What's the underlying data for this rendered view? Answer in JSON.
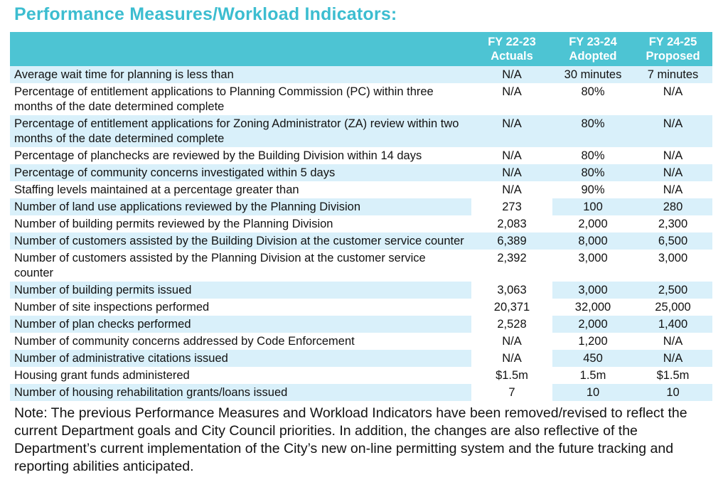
{
  "title": "Performance Measures/Workload Indicators:",
  "colors": {
    "header_background": "#4dc4d3",
    "title_text": "#3cbdd0",
    "shaded_row_background": "#d9f0fa",
    "header_text": "#ffffff",
    "body_text": "#121212"
  },
  "table": {
    "columns": [
      {
        "line1": "FY 22-23",
        "line2": "Actuals"
      },
      {
        "line1": "FY 23-24",
        "line2": "Adopted"
      },
      {
        "line1": "FY 24-25",
        "line2": "Proposed"
      }
    ],
    "rows": [
      {
        "label": "Average wait time for planning is less than",
        "values": [
          "N/A",
          "30 minutes",
          "7 minutes"
        ],
        "shaded": true,
        "actuals_unshaded": false
      },
      {
        "label": "Percentage of entitlement applications to Planning Commission (PC) within three months of the date determined complete",
        "values": [
          "N/A",
          "80%",
          "N/A"
        ],
        "shaded": false,
        "actuals_unshaded": false
      },
      {
        "label": "Percentage of entitlement applications for Zoning Administrator (ZA) review within two months of the date determined complete",
        "values": [
          "N/A",
          "80%",
          "N/A"
        ],
        "shaded": true,
        "actuals_unshaded": false
      },
      {
        "label": "Percentage of planchecks are reviewed by the Building Division within 14 days",
        "values": [
          "N/A",
          "80%",
          "N/A"
        ],
        "shaded": false,
        "actuals_unshaded": false
      },
      {
        "label": "Percentage of community concerns investigated within 5 days",
        "values": [
          "N/A",
          "80%",
          "N/A"
        ],
        "shaded": true,
        "actuals_unshaded": false
      },
      {
        "label": "Staffing levels maintained at a percentage greater than",
        "values": [
          "N/A",
          "90%",
          "N/A"
        ],
        "shaded": false,
        "actuals_unshaded": false
      },
      {
        "label": "Number of land use applications reviewed by the Planning Division",
        "values": [
          "273",
          "100",
          "280"
        ],
        "shaded": true,
        "actuals_unshaded": true
      },
      {
        "label": "Number of building permits reviewed by the Planning Division",
        "values": [
          "2,083",
          "2,000",
          "2,300"
        ],
        "shaded": false,
        "actuals_unshaded": false
      },
      {
        "label": "Number of customers assisted by the Building Division at the customer service counter",
        "values": [
          "6,389",
          "8,000",
          "6,500"
        ],
        "shaded": true,
        "actuals_unshaded": false
      },
      {
        "label": "Number of customers assisted by the Planning Division at the customer service counter",
        "values": [
          "2,392",
          "3,000",
          "3,000"
        ],
        "shaded": false,
        "actuals_unshaded": false
      },
      {
        "label": "Number of building permits issued",
        "values": [
          "3,063",
          "3,000",
          "2,500"
        ],
        "shaded": true,
        "actuals_unshaded": true
      },
      {
        "label": "Number of site inspections performed",
        "values": [
          "20,371",
          "32,000",
          "25,000"
        ],
        "shaded": false,
        "actuals_unshaded": false
      },
      {
        "label": "Number of plan checks performed",
        "values": [
          "2,528",
          "2,000",
          "1,400"
        ],
        "shaded": true,
        "actuals_unshaded": true
      },
      {
        "label": "Number of community concerns addressed by Code Enforcement",
        "values": [
          "N/A",
          "1,200",
          "N/A"
        ],
        "shaded": false,
        "actuals_unshaded": false
      },
      {
        "label": "Number of administrative citations issued",
        "values": [
          "N/A",
          "450",
          "N/A"
        ],
        "shaded": true,
        "actuals_unshaded": true
      },
      {
        "label": "Housing grant funds administered",
        "values": [
          "$1.5m",
          "1.5m",
          "$1.5m"
        ],
        "shaded": false,
        "actuals_unshaded": false
      },
      {
        "label": "Number of housing rehabilitation grants/loans issued",
        "values": [
          "7",
          "10",
          "10"
        ],
        "shaded": true,
        "actuals_unshaded": true
      }
    ]
  },
  "note": "Note: The previous Performance Measures and Workload Indicators have been removed/revised to reflect the current Department goals and City Council priorities. In addition, the changes are also reflective of the Department’s current implementation of the City’s new on-line permitting system and the future tracking and reporting abilities anticipated."
}
